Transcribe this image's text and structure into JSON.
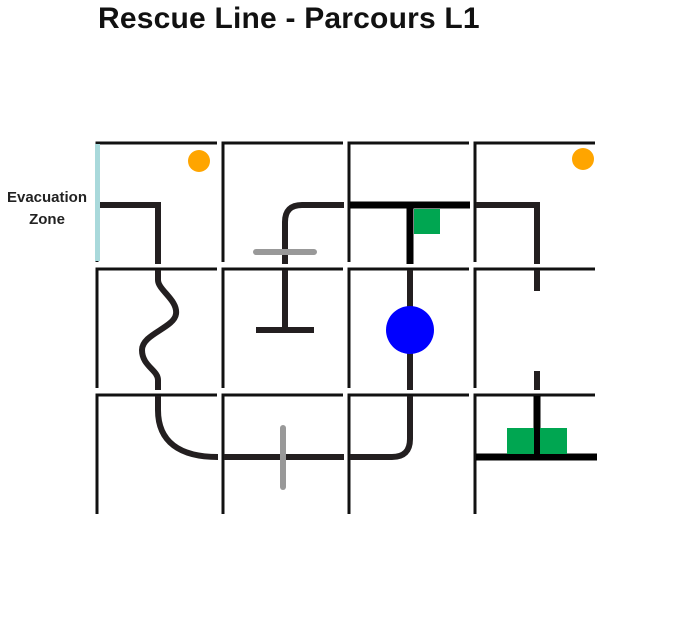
{
  "header": {
    "title": "Rescue Line - Parcours L1"
  },
  "evacuation_zone": {
    "label_line1": "Evacuation",
    "label_line2": "Zone"
  },
  "colors": {
    "tile_border": "#111111",
    "line": "#231f20",
    "obstacle_gray": "#999999",
    "evacuation_marker": "#a9d9db",
    "victim_orange": "#ffa500",
    "green_marker": "#00a651",
    "obstacle_blue": "#0000ff"
  },
  "grid": {
    "rows": 3,
    "cols": 4
  },
  "tiles": [
    {
      "row": 1,
      "col": 1,
      "features": [
        "victim-ball",
        "line-corner",
        "evacuation-entry"
      ]
    },
    {
      "row": 1,
      "col": 2,
      "features": [
        "line-curve",
        "speed-bump"
      ]
    },
    {
      "row": 1,
      "col": 3,
      "features": [
        "t-junction",
        "green-marker"
      ]
    },
    {
      "row": 1,
      "col": 4,
      "features": [
        "victim-ball",
        "line-corner"
      ]
    },
    {
      "row": 2,
      "col": 1,
      "features": [
        "zigzag-line"
      ]
    },
    {
      "row": 2,
      "col": 2,
      "features": [
        "dead-end-line"
      ]
    },
    {
      "row": 2,
      "col": 3,
      "features": [
        "obstacle"
      ]
    },
    {
      "row": 2,
      "col": 4,
      "features": [
        "line-gap"
      ]
    },
    {
      "row": 3,
      "col": 1,
      "features": [
        "line-curve"
      ]
    },
    {
      "row": 3,
      "col": 2,
      "features": [
        "speed-bump"
      ]
    },
    {
      "row": 3,
      "col": 3,
      "features": [
        "line-curve"
      ]
    },
    {
      "row": 3,
      "col": 4,
      "features": [
        "t-junction",
        "green-marker",
        "green-marker"
      ]
    }
  ]
}
